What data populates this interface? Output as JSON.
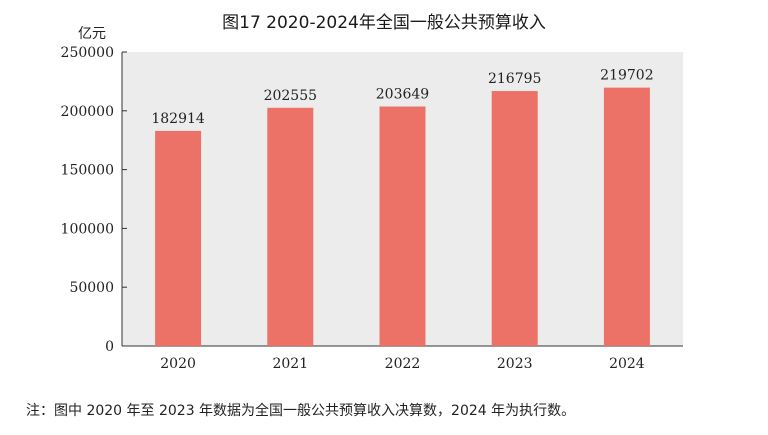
{
  "chart_data": {
    "type": "bar",
    "title": "图17 2020-2024年全国一般公共预算收入",
    "ylabel": "亿元",
    "xlabel": "",
    "categories": [
      "2020",
      "2021",
      "2022",
      "2023",
      "2024"
    ],
    "values": [
      182914,
      202555,
      203649,
      216795,
      219702
    ],
    "ylim": [
      0,
      250000
    ],
    "yticks": [
      0,
      50000,
      100000,
      150000,
      200000,
      250000
    ],
    "data_labels": true,
    "grid": false,
    "legend": "none",
    "colors": {
      "bar": "#ec7268",
      "plot_background": "#ececec"
    }
  },
  "footnote": "注：图中 2020 年至 2023 年数据为全国一般公共预算收入决算数，2024 年为执行数。"
}
